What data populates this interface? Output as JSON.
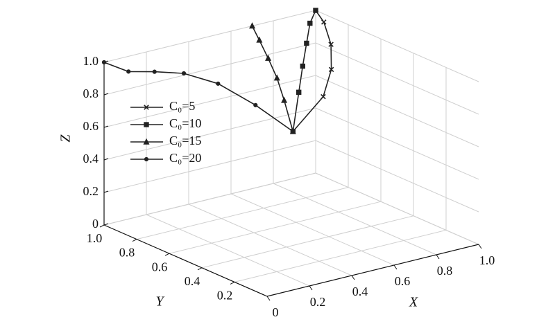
{
  "chart_data": {
    "type": "line3d",
    "x_label": "X",
    "y_label": "Y",
    "z_label": "Z",
    "xlim": [
      0,
      1
    ],
    "ylim": [
      0,
      1
    ],
    "zlim": [
      0,
      1
    ],
    "xticks": [
      0,
      0.2,
      0.4,
      0.6,
      0.8,
      {
        "value": 1,
        "label": "1.0"
      }
    ],
    "yticks": [
      0.2,
      0.4,
      0.6,
      0.8,
      {
        "value": 1,
        "label": "1.0"
      }
    ],
    "zticks": [
      0,
      0.2,
      0.4,
      0.6,
      0.8,
      {
        "value": 1,
        "label": "1.0"
      }
    ],
    "grid": true,
    "series": [
      {
        "name": "C₀=5",
        "color": "#222222",
        "marker": "x",
        "x": [
          1,
          1,
          0.98,
          0.92,
          0.82,
          0.6
        ],
        "y": [
          1,
          0.95,
          0.88,
          0.8,
          0.72,
          0.62
        ],
        "z": [
          1,
          0.95,
          0.85,
          0.75,
          0.65,
          0.55
        ]
      },
      {
        "name": "C₀=10",
        "color": "#222222",
        "marker": "square",
        "x": [
          1,
          0.95,
          0.88,
          0.8,
          0.72,
          0.6
        ],
        "y": [
          1,
          0.97,
          0.9,
          0.82,
          0.74,
          0.62
        ],
        "z": [
          1,
          0.95,
          0.88,
          0.8,
          0.7,
          0.55
        ]
      },
      {
        "name": "C₀=15",
        "color": "#222222",
        "marker": "triangle",
        "x": [
          0.7,
          0.68,
          0.66,
          0.64,
          0.62,
          0.6
        ],
        "y": [
          1,
          0.93,
          0.85,
          0.77,
          0.7,
          0.62
        ],
        "z": [
          1,
          0.95,
          0.88,
          0.8,
          0.7,
          0.55
        ]
      },
      {
        "name": "C₀=20",
        "color": "#222222",
        "marker": "circle",
        "x": [
          0,
          0.1,
          0.2,
          0.3,
          0.4,
          0.5,
          0.6
        ],
        "y": [
          1,
          0.98,
          0.95,
          0.9,
          0.82,
          0.72,
          0.62
        ],
        "z": [
          1,
          0.92,
          0.9,
          0.88,
          0.82,
          0.7,
          0.55
        ]
      }
    ]
  }
}
